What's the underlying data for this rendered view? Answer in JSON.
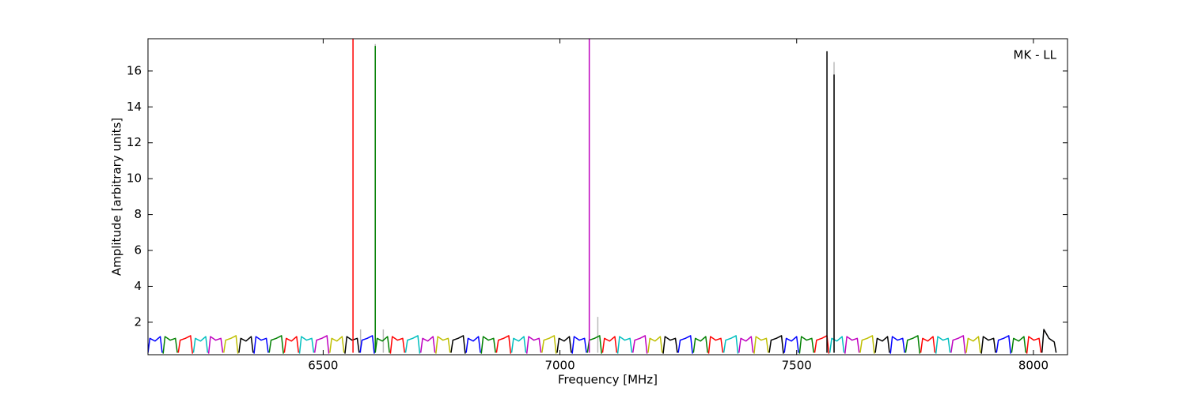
{
  "chart_data": {
    "type": "line",
    "annotation": "MK - LL",
    "x_label": "Frequency [MHz]",
    "y_label": "Amplitude [arbitrary units]",
    "xlim": [
      6130,
      8072
    ],
    "ylim": [
      0.19,
      17.8
    ],
    "xticks": [
      6500,
      7000,
      7500,
      8000
    ],
    "yticks": [
      2,
      4,
      6,
      8,
      10,
      12,
      14,
      16
    ],
    "grid": false,
    "series": [
      {
        "color": "#bbbbbb",
        "x": [
          6579,
          6579
        ],
        "values": [
          0.3,
          1.6
        ]
      },
      {
        "color": "#bbbbbb",
        "x": [
          6610,
          6610
        ],
        "values": [
          0.3,
          17.5
        ]
      },
      {
        "color": "#bbbbbb",
        "x": [
          6627,
          6627
        ],
        "values": [
          0.3,
          1.6
        ]
      },
      {
        "color": "#bbbbbb",
        "x": [
          7080,
          7080
        ],
        "values": [
          0.3,
          2.3
        ]
      },
      {
        "color": "#bbbbbb",
        "x": [
          7579,
          7579
        ],
        "values": [
          0.3,
          16.5
        ]
      },
      {
        "color": "#0000ff",
        "x": [
          6130,
          6134,
          6145,
          6156,
          6160
        ],
        "values": [
          0.3,
          1.1,
          0.95,
          1.2,
          0.3
        ]
      },
      {
        "color": "#008000",
        "x": [
          6162,
          6166,
          6177,
          6188,
          6192
        ],
        "values": [
          0.25,
          1.2,
          1.0,
          1.1,
          0.3
        ]
      },
      {
        "color": "#ff0000",
        "x": [
          6194,
          6198,
          6209,
          6220,
          6224
        ],
        "values": [
          0.3,
          1.0,
          1.1,
          1.25,
          0.25
        ]
      },
      {
        "color": "#00bfbf",
        "x": [
          6226,
          6230,
          6241,
          6252,
          6256
        ],
        "values": [
          0.3,
          1.1,
          0.95,
          1.2,
          0.3
        ]
      },
      {
        "color": "#bf00bf",
        "x": [
          6258,
          6262,
          6273,
          6284,
          6288
        ],
        "values": [
          0.25,
          1.2,
          1.0,
          1.1,
          0.3
        ]
      },
      {
        "color": "#bfbf00",
        "x": [
          6290,
          6294,
          6305,
          6316,
          6320
        ],
        "values": [
          0.3,
          1.0,
          1.1,
          1.25,
          0.25
        ]
      },
      {
        "color": "#000000",
        "x": [
          6322,
          6326,
          6337,
          6348,
          6352
        ],
        "values": [
          0.3,
          1.1,
          0.95,
          1.2,
          0.3
        ]
      },
      {
        "color": "#0000ff",
        "x": [
          6354,
          6358,
          6369,
          6380,
          6384
        ],
        "values": [
          0.25,
          1.2,
          1.0,
          1.1,
          0.3
        ]
      },
      {
        "color": "#008000",
        "x": [
          6386,
          6390,
          6401,
          6412,
          6416
        ],
        "values": [
          0.3,
          1.0,
          1.1,
          1.25,
          0.25
        ]
      },
      {
        "color": "#ff0000",
        "x": [
          6418,
          6422,
          6433,
          6444,
          6448
        ],
        "values": [
          0.3,
          1.1,
          0.95,
          1.2,
          0.3
        ]
      },
      {
        "color": "#00bfbf",
        "x": [
          6450,
          6454,
          6465,
          6476,
          6480
        ],
        "values": [
          0.25,
          1.2,
          1.0,
          1.1,
          0.3
        ]
      },
      {
        "color": "#bf00bf",
        "x": [
          6482,
          6486,
          6497,
          6508,
          6512
        ],
        "values": [
          0.3,
          1.0,
          1.1,
          1.25,
          0.25
        ]
      },
      {
        "color": "#bfbf00",
        "x": [
          6514,
          6518,
          6529,
          6540,
          6544
        ],
        "values": [
          0.3,
          1.1,
          0.95,
          1.2,
          0.3
        ]
      },
      {
        "color": "#000000",
        "x": [
          6546,
          6550,
          6561,
          6572,
          6576
        ],
        "values": [
          0.25,
          1.2,
          1.0,
          1.1,
          0.3
        ]
      },
      {
        "color": "#0000ff",
        "x": [
          6578,
          6582,
          6593,
          6604,
          6608
        ],
        "values": [
          0.3,
          1.0,
          1.1,
          1.25,
          0.25
        ]
      },
      {
        "color": "#008000",
        "x": [
          6610,
          6614,
          6625,
          6636,
          6640
        ],
        "values": [
          0.3,
          1.1,
          0.95,
          1.2,
          0.3
        ]
      },
      {
        "color": "#ff0000",
        "x": [
          6642,
          6646,
          6657,
          6668,
          6672
        ],
        "values": [
          0.25,
          1.2,
          1.0,
          1.1,
          0.3
        ]
      },
      {
        "color": "#00bfbf",
        "x": [
          6674,
          6678,
          6689,
          6700,
          6704
        ],
        "values": [
          0.3,
          1.0,
          1.1,
          1.25,
          0.25
        ]
      },
      {
        "color": "#bf00bf",
        "x": [
          6706,
          6710,
          6721,
          6732,
          6736
        ],
        "values": [
          0.3,
          1.1,
          0.95,
          1.2,
          0.3
        ]
      },
      {
        "color": "#bfbf00",
        "x": [
          6738,
          6742,
          6753,
          6764,
          6768
        ],
        "values": [
          0.25,
          1.2,
          1.0,
          1.1,
          0.3
        ]
      },
      {
        "color": "#000000",
        "x": [
          6770,
          6774,
          6785,
          6796,
          6800
        ],
        "values": [
          0.3,
          1.0,
          1.1,
          1.25,
          0.25
        ]
      },
      {
        "color": "#0000ff",
        "x": [
          6802,
          6806,
          6817,
          6828,
          6832
        ],
        "values": [
          0.3,
          1.1,
          0.95,
          1.2,
          0.3
        ]
      },
      {
        "color": "#008000",
        "x": [
          6834,
          6838,
          6849,
          6860,
          6864
        ],
        "values": [
          0.25,
          1.2,
          1.0,
          1.1,
          0.3
        ]
      },
      {
        "color": "#ff0000",
        "x": [
          6866,
          6870,
          6881,
          6892,
          6896
        ],
        "values": [
          0.3,
          1.0,
          1.1,
          1.25,
          0.25
        ]
      },
      {
        "color": "#00bfbf",
        "x": [
          6898,
          6902,
          6913,
          6924,
          6928
        ],
        "values": [
          0.3,
          1.1,
          0.95,
          1.2,
          0.3
        ]
      },
      {
        "color": "#bf00bf",
        "x": [
          6930,
          6934,
          6945,
          6956,
          6960
        ],
        "values": [
          0.25,
          1.2,
          1.0,
          1.1,
          0.3
        ]
      },
      {
        "color": "#bfbf00",
        "x": [
          6962,
          6966,
          6977,
          6988,
          6992
        ],
        "values": [
          0.3,
          1.0,
          1.1,
          1.25,
          0.25
        ]
      },
      {
        "color": "#000000",
        "x": [
          6994,
          6998,
          7009,
          7020,
          7024
        ],
        "values": [
          0.3,
          1.1,
          0.95,
          1.2,
          0.3
        ]
      },
      {
        "color": "#0000ff",
        "x": [
          7026,
          7030,
          7041,
          7052,
          7056
        ],
        "values": [
          0.25,
          1.2,
          1.0,
          1.1,
          0.3
        ]
      },
      {
        "color": "#008000",
        "x": [
          7058,
          7062,
          7073,
          7084,
          7088
        ],
        "values": [
          0.3,
          1.0,
          1.1,
          1.25,
          0.25
        ]
      },
      {
        "color": "#ff0000",
        "x": [
          7090,
          7094,
          7105,
          7116,
          7120
        ],
        "values": [
          0.3,
          1.1,
          0.95,
          1.2,
          0.3
        ]
      },
      {
        "color": "#00bfbf",
        "x": [
          7122,
          7126,
          7137,
          7148,
          7152
        ],
        "values": [
          0.25,
          1.2,
          1.0,
          1.1,
          0.3
        ]
      },
      {
        "color": "#bf00bf",
        "x": [
          7154,
          7158,
          7169,
          7180,
          7184
        ],
        "values": [
          0.3,
          1.0,
          1.1,
          1.25,
          0.25
        ]
      },
      {
        "color": "#bfbf00",
        "x": [
          7186,
          7190,
          7201,
          7212,
          7216
        ],
        "values": [
          0.3,
          1.1,
          0.95,
          1.2,
          0.3
        ]
      },
      {
        "color": "#000000",
        "x": [
          7218,
          7222,
          7233,
          7244,
          7248
        ],
        "values": [
          0.25,
          1.2,
          1.0,
          1.1,
          0.3
        ]
      },
      {
        "color": "#0000ff",
        "x": [
          7250,
          7254,
          7265,
          7276,
          7280
        ],
        "values": [
          0.3,
          1.0,
          1.1,
          1.25,
          0.25
        ]
      },
      {
        "color": "#008000",
        "x": [
          7282,
          7286,
          7297,
          7308,
          7312
        ],
        "values": [
          0.3,
          1.1,
          0.95,
          1.2,
          0.3
        ]
      },
      {
        "color": "#ff0000",
        "x": [
          7314,
          7318,
          7329,
          7340,
          7344
        ],
        "values": [
          0.25,
          1.2,
          1.0,
          1.1,
          0.3
        ]
      },
      {
        "color": "#00bfbf",
        "x": [
          7346,
          7350,
          7361,
          7372,
          7376
        ],
        "values": [
          0.3,
          1.0,
          1.1,
          1.25,
          0.25
        ]
      },
      {
        "color": "#bf00bf",
        "x": [
          7378,
          7382,
          7393,
          7404,
          7408
        ],
        "values": [
          0.3,
          1.1,
          0.95,
          1.2,
          0.3
        ]
      },
      {
        "color": "#bfbf00",
        "x": [
          7410,
          7414,
          7425,
          7436,
          7440
        ],
        "values": [
          0.25,
          1.2,
          1.0,
          1.1,
          0.3
        ]
      },
      {
        "color": "#000000",
        "x": [
          7442,
          7446,
          7457,
          7468,
          7472
        ],
        "values": [
          0.3,
          1.0,
          1.1,
          1.25,
          0.25
        ]
      },
      {
        "color": "#0000ff",
        "x": [
          7474,
          7478,
          7489,
          7500,
          7504
        ],
        "values": [
          0.3,
          1.1,
          0.95,
          1.2,
          0.3
        ]
      },
      {
        "color": "#008000",
        "x": [
          7506,
          7510,
          7521,
          7532,
          7536
        ],
        "values": [
          0.25,
          1.2,
          1.0,
          1.1,
          0.3
        ]
      },
      {
        "color": "#ff0000",
        "x": [
          7538,
          7542,
          7553,
          7564,
          7568
        ],
        "values": [
          0.3,
          1.0,
          1.1,
          1.25,
          0.25
        ]
      },
      {
        "color": "#00bfbf",
        "x": [
          7570,
          7574,
          7585,
          7596,
          7600
        ],
        "values": [
          0.3,
          1.1,
          0.95,
          1.2,
          0.3
        ]
      },
      {
        "color": "#bf00bf",
        "x": [
          7602,
          7606,
          7617,
          7628,
          7632
        ],
        "values": [
          0.25,
          1.2,
          1.0,
          1.1,
          0.3
        ]
      },
      {
        "color": "#bfbf00",
        "x": [
          7634,
          7638,
          7649,
          7660,
          7664
        ],
        "values": [
          0.3,
          1.0,
          1.1,
          1.25,
          0.25
        ]
      },
      {
        "color": "#000000",
        "x": [
          7666,
          7670,
          7681,
          7692,
          7696
        ],
        "values": [
          0.3,
          1.1,
          0.95,
          1.2,
          0.3
        ]
      },
      {
        "color": "#0000ff",
        "x": [
          7698,
          7702,
          7713,
          7724,
          7728
        ],
        "values": [
          0.25,
          1.2,
          1.0,
          1.1,
          0.3
        ]
      },
      {
        "color": "#008000",
        "x": [
          7730,
          7734,
          7745,
          7756,
          7760
        ],
        "values": [
          0.3,
          1.0,
          1.1,
          1.25,
          0.25
        ]
      },
      {
        "color": "#ff0000",
        "x": [
          7762,
          7766,
          7777,
          7788,
          7792
        ],
        "values": [
          0.3,
          1.1,
          0.95,
          1.2,
          0.3
        ]
      },
      {
        "color": "#00bfbf",
        "x": [
          7794,
          7798,
          7809,
          7820,
          7824
        ],
        "values": [
          0.25,
          1.2,
          1.0,
          1.1,
          0.3
        ]
      },
      {
        "color": "#bf00bf",
        "x": [
          7826,
          7830,
          7841,
          7852,
          7856
        ],
        "values": [
          0.3,
          1.0,
          1.1,
          1.25,
          0.25
        ]
      },
      {
        "color": "#bfbf00",
        "x": [
          7858,
          7862,
          7873,
          7884,
          7888
        ],
        "values": [
          0.3,
          1.1,
          0.95,
          1.2,
          0.3
        ]
      },
      {
        "color": "#000000",
        "x": [
          7890,
          7894,
          7905,
          7916,
          7920
        ],
        "values": [
          0.25,
          1.2,
          1.0,
          1.1,
          0.3
        ]
      },
      {
        "color": "#0000ff",
        "x": [
          7922,
          7926,
          7937,
          7948,
          7952
        ],
        "values": [
          0.3,
          1.0,
          1.1,
          1.25,
          0.25
        ]
      },
      {
        "color": "#008000",
        "x": [
          7954,
          7958,
          7969,
          7980,
          7984
        ],
        "values": [
          0.3,
          1.1,
          0.95,
          1.2,
          0.3
        ]
      },
      {
        "color": "#ff0000",
        "x": [
          7986,
          7990,
          8001,
          8012,
          8016
        ],
        "values": [
          0.25,
          1.2,
          1.0,
          1.1,
          0.3
        ]
      },
      {
        "color": "#000000",
        "x": [
          8018,
          8022,
          8033,
          8044,
          8048
        ],
        "values": [
          0.3,
          1.6,
          1.1,
          0.9,
          0.3
        ]
      },
      {
        "color": "#ff0000",
        "x": [
          6563,
          6563
        ],
        "values": [
          0.3,
          17.8
        ]
      },
      {
        "color": "#008000",
        "x": [
          6610,
          6610
        ],
        "values": [
          0.3,
          17.4
        ]
      },
      {
        "color": "#bf00bf",
        "x": [
          7062,
          7062
        ],
        "values": [
          0.3,
          17.8
        ]
      },
      {
        "color": "#000000",
        "x": [
          7564,
          7564
        ],
        "values": [
          0.3,
          17.1
        ]
      },
      {
        "color": "#000000",
        "x": [
          7579,
          7579
        ],
        "values": [
          0.3,
          15.8
        ]
      }
    ]
  }
}
